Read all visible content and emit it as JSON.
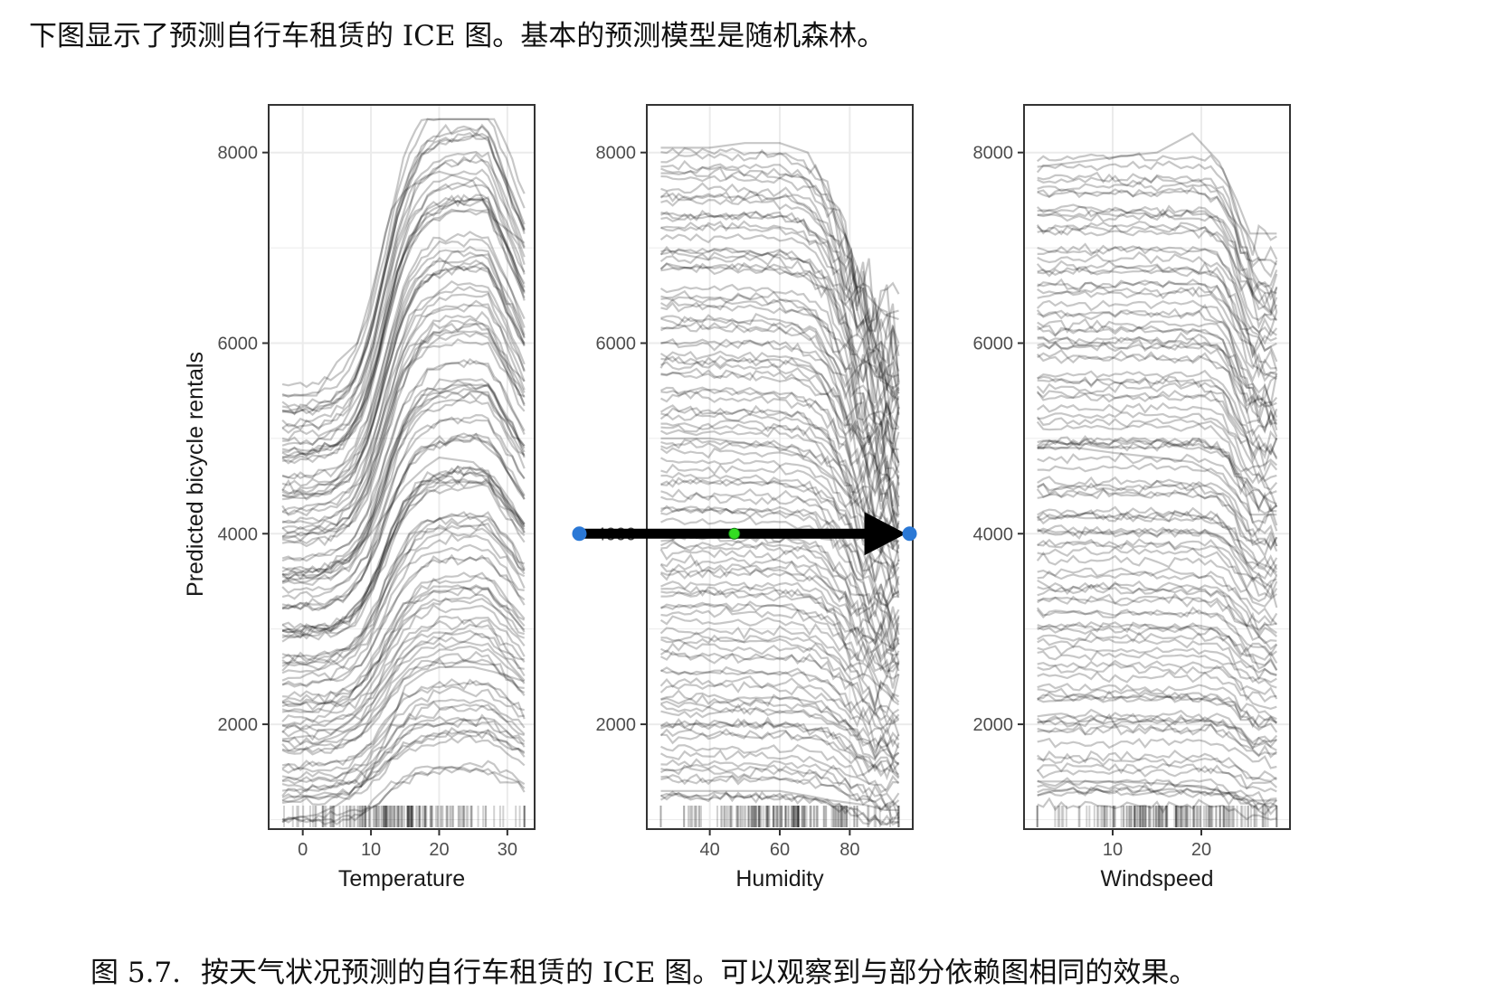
{
  "intro_text": "下图显示了预测自行车租赁的 ICE 图。基本的预测模型是随机森林。",
  "caption": {
    "number": "图 5.7.",
    "text": "按天气状况预测的自行车租赁的 ICE 图。可以观察到与部分依赖图相同的效果。"
  },
  "colors": {
    "line": "#000000",
    "panel_border": "#333333",
    "grid": "#ebebeb",
    "marker_blue": "#2a78d6",
    "marker_green": "#33dd22"
  },
  "chart_data": {
    "type": "line",
    "plot_style": "ICE curves (many semi-transparent black lines) with rug plot along x axis",
    "ylabel": "Predicted bicycle rentals",
    "ylim": [
      900,
      8500
    ],
    "yticks": [
      2000,
      4000,
      6000,
      8000
    ],
    "grid": true,
    "panels": [
      {
        "xlabel": "Temperature",
        "xlim": [
          -5,
          34
        ],
        "xticks": [
          0,
          10,
          20,
          30
        ],
        "x_range": [
          -3,
          32.5
        ],
        "shape": "temperature",
        "curve_count": 110,
        "example_series": [
          {
            "x": [
              -3,
              2,
              5,
              8,
              10,
              13,
              15,
              18,
              20,
              25,
              28,
              32.5
            ],
            "y": [
              5450,
              5450,
              5800,
              6000,
              6500,
              7400,
              7600,
              7750,
              7800,
              7700,
              7300,
              7050
            ]
          },
          {
            "x": [
              -3,
              2,
              5,
              8,
              10,
              13,
              15,
              18,
              20,
              25,
              28,
              32.5
            ],
            "y": [
              3500,
              3550,
              3700,
              3850,
              4000,
              4300,
              4500,
              4700,
              4800,
              4750,
              4550,
              4100
            ]
          },
          {
            "x": [
              -3,
              2,
              5,
              8,
              10,
              13,
              15,
              18,
              20,
              25,
              28,
              32.5
            ],
            "y": [
              1000,
              1050,
              1150,
              1300,
              1500,
              2000,
              2400,
              2550,
              2600,
              2600,
              2550,
              2450
            ]
          }
        ]
      },
      {
        "xlabel": "Humidity",
        "xlim": [
          22,
          98
        ],
        "xticks": [
          40,
          60,
          80
        ],
        "x_range": [
          26,
          94
        ],
        "shape": "humidity",
        "curve_count": 110,
        "example_series": [
          {
            "x": [
              26,
              40,
              50,
              60,
              68,
              75,
              85,
              90,
              94
            ],
            "y": [
              8050,
              8050,
              8100,
              8100,
              8000,
              7500,
              6500,
              6300,
              6250
            ]
          },
          {
            "x": [
              26,
              40,
              50,
              60,
              68,
              75,
              85,
              90,
              94
            ],
            "y": [
              5000,
              5000,
              4950,
              4900,
              4800,
              4600,
              4200,
              3900,
              3800
            ]
          },
          {
            "x": [
              26,
              40,
              50,
              60,
              68,
              75,
              85,
              90,
              94
            ],
            "y": [
              1300,
              1300,
              1300,
              1300,
              1250,
              1200,
              1150,
              1100,
              1100
            ]
          }
        ],
        "annotation": {
          "type": "arrow",
          "from": {
            "x": 26,
            "y": 4000
          },
          "to": {
            "x": 94,
            "y": 4000
          },
          "midpoint_marker": {
            "x": 47,
            "y": 4000
          }
        }
      },
      {
        "xlabel": "Windspeed",
        "xlim": [
          0,
          30
        ],
        "xticks": [
          10,
          20
        ],
        "x_range": [
          1.5,
          28.5
        ],
        "shape": "windspeed",
        "curve_count": 110,
        "example_series": [
          {
            "x": [
              1.5,
              6,
              10,
              15,
              19,
              22,
              24,
              25.5,
              28.5
            ],
            "y": [
              7850,
              7900,
              7950,
              8000,
              8200,
              7900,
              7500,
              7150,
              7150
            ]
          },
          {
            "x": [
              1.5,
              6,
              10,
              15,
              19,
              22,
              24,
              25.5,
              28.5
            ],
            "y": [
              4900,
              4900,
              4850,
              4800,
              4750,
              4600,
              4400,
              4200,
              4200
            ]
          },
          {
            "x": [
              1.5,
              6,
              10,
              15,
              19,
              22,
              24,
              25.5,
              28.5
            ],
            "y": [
              1400,
              1400,
              1400,
              1380,
              1350,
              1300,
              1250,
              1200,
              1200
            ]
          }
        ]
      }
    ]
  }
}
